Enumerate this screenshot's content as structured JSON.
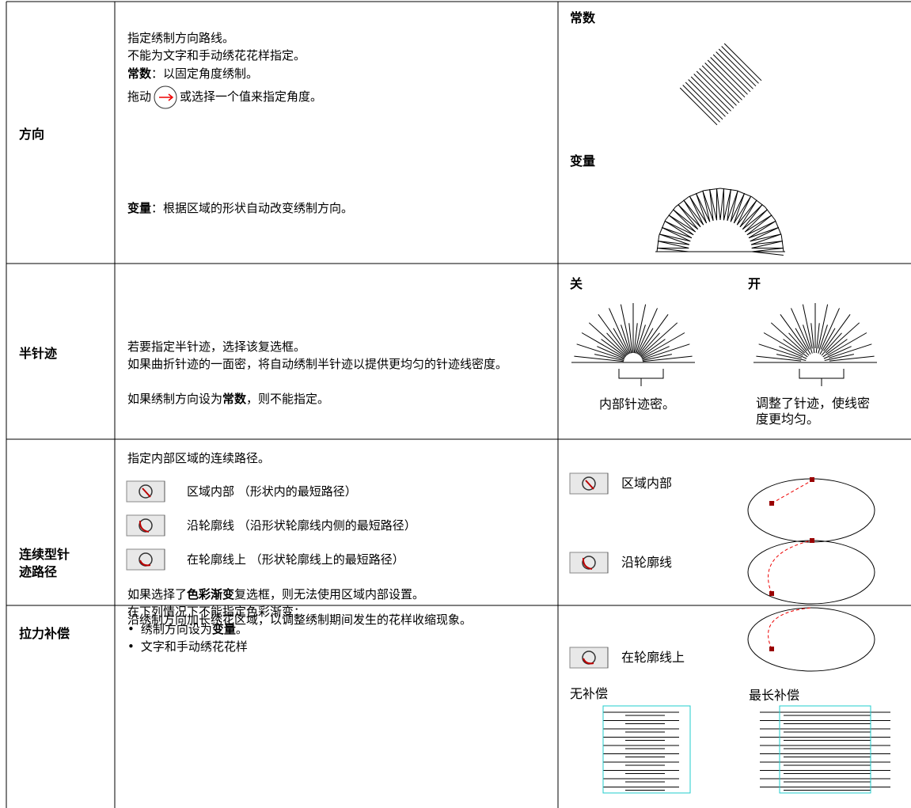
{
  "rows": [
    {
      "label": "方向",
      "description": [
        "指定绣制方向路线。",
        "不能为文字和手动绣花花样指定。",
        [
          "常数",
          "：以固定角度绣制。"
        ],
        [
          "拖动",
          "或选择一个值来指定角度。"
        ],
        [
          "变量",
          "：根据区域的形状自动改变绣制方向。"
        ]
      ],
      "illustrations": [
        "常数",
        "变量"
      ]
    },
    {
      "label": "半针迹",
      "description": [
        "若要指定半针迹，选择该复选框。",
        "如果曲折针迹的一面密，将自动绣制半针迹以提供更均匀的针迹线密度。",
        [
          "如果绣制方向设为",
          "常数",
          "，则不能指定。"
        ]
      ],
      "illustrations": [
        {
          "title": "关",
          "caption": "内部针迹密。"
        },
        {
          "title": "开",
          "caption": "调整了针迹，使线密度更均匀。"
        }
      ]
    },
    {
      "label": "连续型针迹路径",
      "description": {
        "intro": "指定内部区域的连续路径。",
        "options": [
          [
            "区域内部",
            "（形状内的最短路径）"
          ],
          [
            "沿轮廓线",
            "（沿形状轮廓线内侧的最短路径）"
          ],
          [
            "在轮廓线上",
            "（形状轮廓线上的最短路径）"
          ]
        ],
        "notes": [
          [
            "如果选择了",
            "色彩渐变",
            "复选框，则无法使用区域内部设置。"
          ],
          "在下列情况下不能指定色彩渐变："
        ],
        "bullets": [
          [
            "绣制方向设为",
            "变量",
            "。"
          ],
          "文字和手动绣花花样"
        ]
      },
      "illustrations": [
        "区域内部",
        "沿轮廓线",
        "在轮廓线上"
      ]
    },
    {
      "label": "拉力补偿",
      "description": [
        "沿绣制方向加长绣花区域，以调整绣制期间发生的花样收缩现象。"
      ],
      "illustrations": [
        "无补偿",
        "最长补偿"
      ]
    }
  ]
}
